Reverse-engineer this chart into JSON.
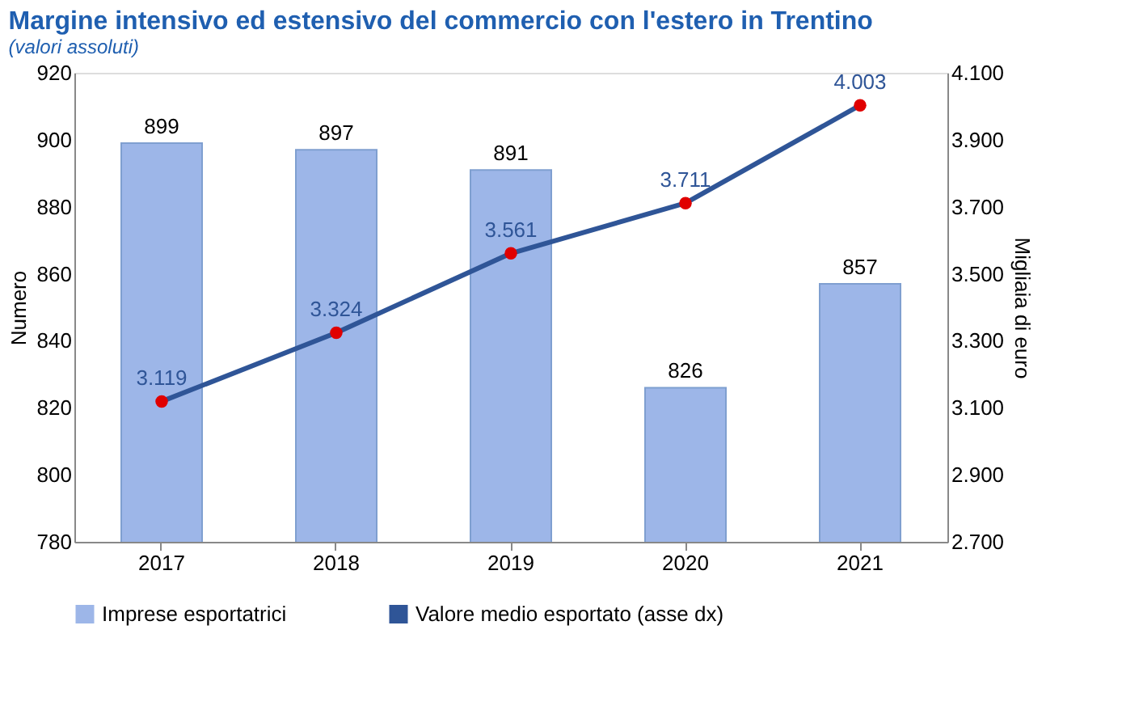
{
  "chart_data": {
    "type": "bar",
    "title": "Margine intensivo ed estensivo del commercio con l'estero in Trentino",
    "subtitle": "(valori assoluti)",
    "ylabel": "Numero",
    "y2label": "Migliaia di euro",
    "categories": [
      "2017",
      "2018",
      "2019",
      "2020",
      "2021"
    ],
    "series": [
      {
        "name": "Imprese esportatrici",
        "color": "#9db6e8",
        "values": [
          899,
          897,
          891,
          826,
          857
        ]
      },
      {
        "name": "Valore medio esportato (asse dx)",
        "type": "line",
        "axis": "y2",
        "color": "#2f5597",
        "marker": "circle",
        "values": [
          3119,
          3324,
          3561,
          3711,
          4003
        ],
        "value_labels": [
          "3.119",
          "3.324",
          "3.561",
          "3.711",
          "4.003"
        ]
      }
    ],
    "data_labels": true,
    "ylim": [
      780,
      920
    ],
    "yticks": [
      780,
      800,
      820,
      840,
      860,
      880,
      900,
      920
    ],
    "y2lim": [
      2700,
      4100
    ],
    "y2ticks": [
      {
        "value": 2700,
        "label": "2.700"
      },
      {
        "value": 2900,
        "label": "2.900"
      },
      {
        "value": 3100,
        "label": "3.100"
      },
      {
        "value": 3300,
        "label": "3.300"
      },
      {
        "value": 3500,
        "label": "3.500"
      },
      {
        "value": 3700,
        "label": "3.700"
      },
      {
        "value": 3900,
        "label": "3.900"
      },
      {
        "value": 4100,
        "label": "4.100"
      }
    ],
    "grid": false,
    "legend": "bottom"
  }
}
